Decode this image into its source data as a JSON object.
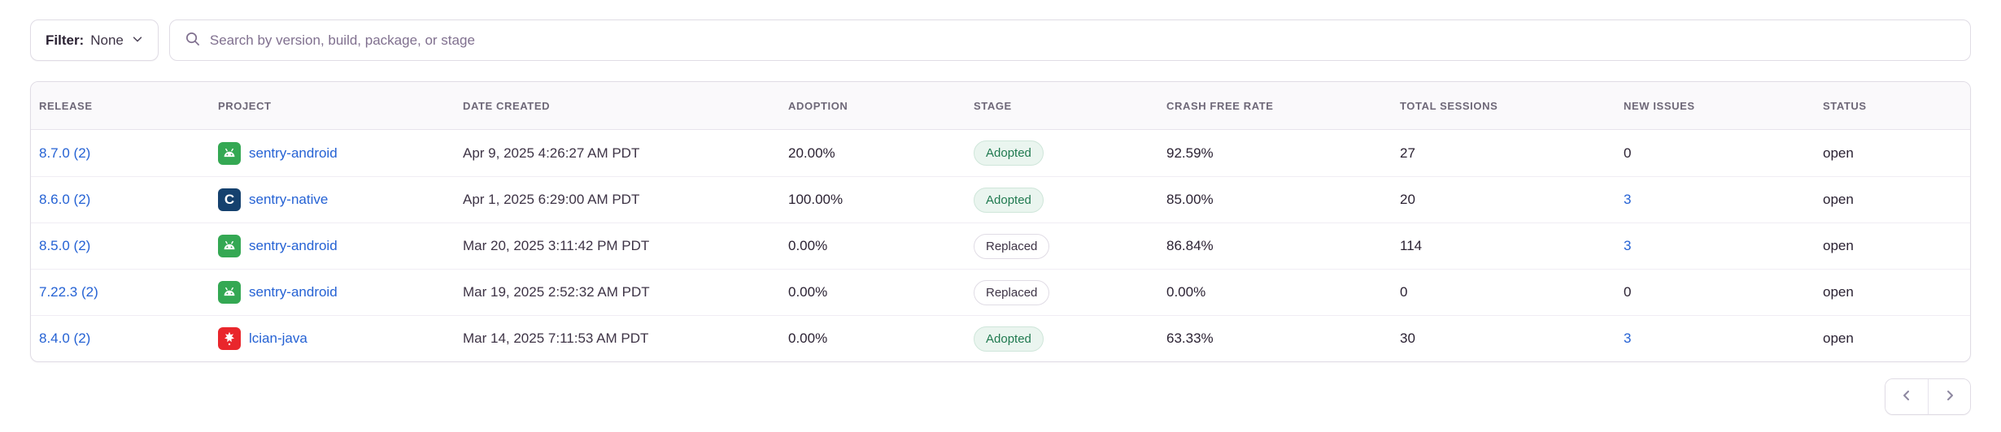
{
  "toolbar": {
    "filter_label": "Filter:",
    "filter_value": "None",
    "search_placeholder": "Search by version, build, package, or stage"
  },
  "table": {
    "columns": [
      "Release",
      "Project",
      "Date Created",
      "Adoption",
      "Stage",
      "Crash Free Rate",
      "Total Sessions",
      "New Issues",
      "Status"
    ],
    "rows": [
      {
        "release": "8.7.0 (2)",
        "project": "sentry-android",
        "platform_icon": "android-icon",
        "date_created": "Apr 9, 2025 4:26:27 AM PDT",
        "adoption": "20.00%",
        "stage": "Adopted",
        "crash_free_rate": "92.59%",
        "total_sessions": "27",
        "new_issues": "0",
        "new_issues_link": false,
        "status": "open"
      },
      {
        "release": "8.6.0 (2)",
        "project": "sentry-native",
        "platform_icon": "c-icon",
        "date_created": "Apr 1, 2025 6:29:00 AM PDT",
        "adoption": "100.00%",
        "stage": "Adopted",
        "crash_free_rate": "85.00%",
        "total_sessions": "20",
        "new_issues": "3",
        "new_issues_link": true,
        "status": "open"
      },
      {
        "release": "8.5.0 (2)",
        "project": "sentry-android",
        "platform_icon": "android-icon",
        "date_created": "Mar 20, 2025 3:11:42 PM PDT",
        "adoption": "0.00%",
        "stage": "Replaced",
        "crash_free_rate": "86.84%",
        "total_sessions": "114",
        "new_issues": "3",
        "new_issues_link": true,
        "status": "open"
      },
      {
        "release": "7.22.3 (2)",
        "project": "sentry-android",
        "platform_icon": "android-icon",
        "date_created": "Mar 19, 2025 2:52:32 AM PDT",
        "adoption": "0.00%",
        "stage": "Replaced",
        "crash_free_rate": "0.00%",
        "total_sessions": "0",
        "new_issues": "0",
        "new_issues_link": false,
        "status": "open"
      },
      {
        "release": "8.4.0 (2)",
        "project": "lcian-java",
        "platform_icon": "java-icon",
        "date_created": "Mar 14, 2025 7:11:53 AM PDT",
        "adoption": "0.00%",
        "stage": "Adopted",
        "crash_free_rate": "63.33%",
        "total_sessions": "30",
        "new_issues": "3",
        "new_issues_link": true,
        "status": "open"
      }
    ]
  },
  "icon_colors": {
    "android-icon": "#34A853",
    "c-icon": "#15416e",
    "java-icon": "#e9262c",
    "link_blue": "#2562d4",
    "adopted_green": "#207a50"
  },
  "pagination": {
    "previous_label": "Previous page",
    "next_label": "Next page"
  }
}
